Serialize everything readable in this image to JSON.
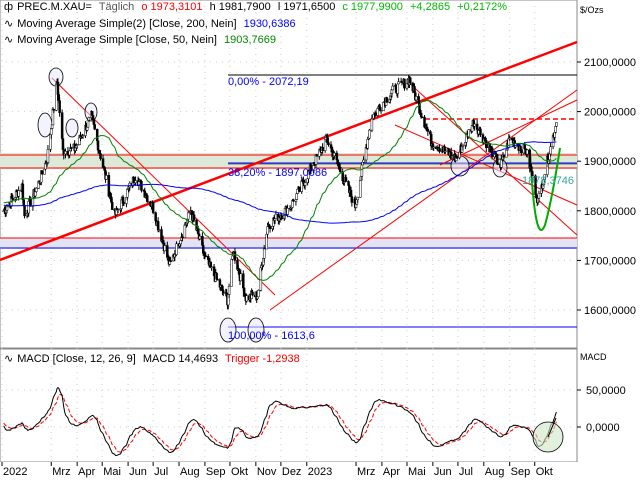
{
  "header": {
    "symbol": "PREC.M.XAU=",
    "interval": "Täglich",
    "open": "o 1973,3101",
    "high": "h 1981,7900",
    "low": "l 1971,6500",
    "close": "c 1977,9900",
    "change": "+4,2865",
    "change_pct": "+0,2172%",
    "unit": "$/Ozs",
    "ma200_label": "Moving Average Simple(2)  [Close, 200, Nein]",
    "ma200_value": "1930,6386",
    "ma50_label": "Moving Average Simple  [Close, 50, Nein]",
    "ma50_value": "1903,7669"
  },
  "macd_header": {
    "label": "MACD  [Close, 12, 26, 9]",
    "macd_value": "MACD 14,4693",
    "trigger_value": "Trigger -1,2938",
    "axis_title": "MACD"
  },
  "annotations": {
    "fib_0": "0,00% - 2072,19",
    "fib_38": "38,20% - 1897,0086",
    "fib_100": "100,00% - 1613,6",
    "green_label": "1878,3746"
  },
  "colors": {
    "ma200": "#0000ff",
    "ma50": "#008000",
    "trend": "#ff0000",
    "macd": "#000000",
    "trigger": "#ff0000",
    "fib": "#0000ff"
  },
  "chart_data": [
    {
      "type": "candlestick",
      "title": "PREC.M.XAU=",
      "ylabel": "$/Ozs",
      "ylim": [
        1560,
        2145
      ],
      "yticks": [
        "2100,0000",
        "2000,0000",
        "1900,0000",
        "1800,0000",
        "1700,0000",
        "1600,0000"
      ],
      "ytick_values": [
        2100,
        2000,
        1900,
        1800,
        1700,
        1600
      ],
      "xticks": [
        {
          "label": "2022",
          "date": "2022-01-01"
        },
        {
          "label": "Mrz",
          "date": "2022-03-01"
        },
        {
          "label": "Apr",
          "date": "2022-04-01"
        },
        {
          "label": "Mai",
          "date": "2022-05-01"
        },
        {
          "label": "Jun",
          "date": "2022-06-01"
        },
        {
          "label": "Jul",
          "date": "2022-07-01"
        },
        {
          "label": "Aug",
          "date": "2022-08-01"
        },
        {
          "label": "Sep",
          "date": "2022-09-01"
        },
        {
          "label": "Okt",
          "date": "2022-10-01"
        },
        {
          "label": "Nov",
          "date": "2022-11-01"
        },
        {
          "label": "Dez",
          "date": "2022-12-01"
        },
        {
          "label": "2023",
          "date": "2023-01-01"
        },
        {
          "label": "Mrz",
          "date": "2023-03-01"
        },
        {
          "label": "Apr",
          "date": "2023-04-01"
        },
        {
          "label": "Mai",
          "date": "2023-05-01"
        },
        {
          "label": "Jun",
          "date": "2023-06-01"
        },
        {
          "label": "Jul",
          "date": "2023-07-01"
        },
        {
          "label": "Aug",
          "date": "2023-08-01"
        },
        {
          "label": "Sep",
          "date": "2023-09-01"
        },
        {
          "label": "Okt",
          "date": "2023-10-01"
        }
      ],
      "close_keypoints": [
        [
          "2022-01-03",
          1800
        ],
        [
          "2022-01-25",
          1850
        ],
        [
          "2022-01-28",
          1790
        ],
        [
          "2022-02-15",
          1860
        ],
        [
          "2022-02-24",
          1905
        ],
        [
          "2022-03-08",
          2060
        ],
        [
          "2022-03-15",
          1920
        ],
        [
          "2022-03-29",
          1925
        ],
        [
          "2022-04-18",
          1990
        ],
        [
          "2022-05-16",
          1790
        ],
        [
          "2022-06-10",
          1870
        ],
        [
          "2022-06-30",
          1810
        ],
        [
          "2022-07-21",
          1690
        ],
        [
          "2022-08-15",
          1800
        ],
        [
          "2022-09-01",
          1705
        ],
        [
          "2022-09-28",
          1620
        ],
        [
          "2022-10-05",
          1720
        ],
        [
          "2022-10-20",
          1625
        ],
        [
          "2022-11-03",
          1630
        ],
        [
          "2022-11-15",
          1770
        ],
        [
          "2022-12-13",
          1810
        ],
        [
          "2023-01-25",
          1945
        ],
        [
          "2023-02-28",
          1810
        ],
        [
          "2023-03-20",
          1990
        ],
        [
          "2023-04-13",
          2040
        ],
        [
          "2023-05-04",
          2065
        ],
        [
          "2023-05-30",
          1940
        ],
        [
          "2023-06-29",
          1905
        ],
        [
          "2023-07-20",
          1980
        ],
        [
          "2023-08-21",
          1890
        ],
        [
          "2023-09-01",
          1945
        ],
        [
          "2023-09-21",
          1920
        ],
        [
          "2023-10-05",
          1820
        ],
        [
          "2023-10-27",
          1978
        ]
      ],
      "series": [
        {
          "name": "Moving Average Simple(2) [Close, 200, Nein]",
          "last": 1930.6386
        },
        {
          "name": "Moving Average Simple [Close, 50, Nein]",
          "last": 1903.7669
        }
      ],
      "levels": [
        2072.19,
        1897.0086,
        1613.6
      ]
    },
    {
      "type": "line",
      "title": "MACD [Close, 12, 26, 9]",
      "yticks": [
        "50,0000",
        "0,0000"
      ],
      "ytick_values": [
        50,
        0
      ],
      "series": [
        {
          "name": "MACD",
          "last": 14.4693
        },
        {
          "name": "Trigger",
          "last": -1.2938
        }
      ]
    }
  ]
}
